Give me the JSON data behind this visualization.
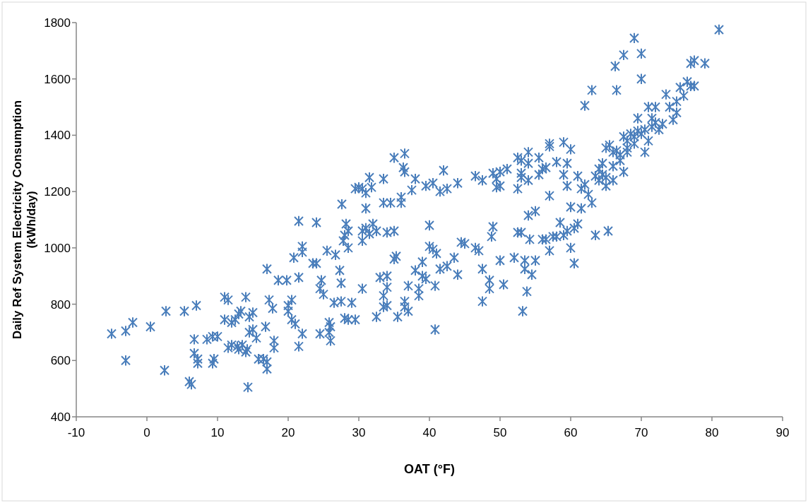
{
  "chart_data": {
    "type": "scatter",
    "xlabel": "OAT (°F)",
    "ylabel": "Daily Ref System Electricity Consumption\n(kWh/day)",
    "xlim": [
      -10,
      90
    ],
    "xticks": [
      -10,
      0,
      10,
      20,
      30,
      40,
      50,
      60,
      70,
      80,
      90
    ],
    "ylim": [
      400,
      1800
    ],
    "yticks": [
      400,
      600,
      800,
      1000,
      1200,
      1400,
      1600,
      1800
    ],
    "grid": false,
    "marker": "cross",
    "series": [
      {
        "color": "#4a7ebb",
        "x": [
          -5,
          -3,
          -2,
          0.5,
          -3,
          2.5,
          2.7,
          5.3,
          7,
          6,
          6.3,
          6.7,
          6.7,
          7.2,
          7.2,
          8.5,
          9.3,
          9.5,
          9.3,
          10,
          11,
          11.5,
          11,
          11.5,
          12,
          12,
          12.5,
          12.8,
          13,
          13.3,
          13,
          13.5,
          14,
          14,
          14.2,
          14.3,
          14.5,
          14.5,
          15,
          15,
          15.5,
          15.8,
          16.5,
          16.8,
          17,
          17,
          17,
          17.3,
          17.8,
          18,
          18,
          18.6,
          19.8,
          20,
          20,
          20.5,
          20.8,
          20.5,
          21,
          21.5,
          21.5,
          21.5,
          22,
          22,
          22,
          23.5,
          24,
          24,
          24.5,
          24.7,
          24.5,
          25,
          25.5,
          25.8,
          25.8,
          26,
          26,
          26.5,
          26.7,
          27.3,
          27.5,
          27.5,
          27.6,
          27.8,
          28,
          28,
          28.2,
          28.5,
          28.5,
          28.5,
          29,
          29.5,
          29.5,
          30,
          30.5,
          30.5,
          30.5,
          30.5,
          31,
          31,
          31,
          31.5,
          31.5,
          31.8,
          32,
          32.5,
          32.5,
          33,
          33.5,
          33.5,
          33.5,
          33.5,
          34,
          34,
          34,
          34,
          34.5,
          35,
          35,
          35,
          35.3,
          35.5,
          36,
          36,
          36.3,
          36.5,
          36.5,
          36.5,
          36.5,
          37,
          37,
          37.5,
          38,
          38,
          38.5,
          38.5,
          39,
          39,
          39.5,
          39.5,
          40,
          40,
          40.5,
          40.5,
          40.8,
          40.8,
          41,
          41.5,
          41.5,
          42,
          42.5,
          42.5,
          43.5,
          44,
          44,
          44.5,
          45,
          46.5,
          46.5,
          47,
          47.5,
          47.5,
          47.5,
          48.5,
          48.5,
          48.8,
          49,
          49,
          49.5,
          49.5,
          50,
          50,
          50,
          50.5,
          51,
          52,
          52.5,
          52.5,
          52.5,
          53,
          53,
          53,
          53,
          53.2,
          53.5,
          53.5,
          53.8,
          54,
          54,
          54,
          54,
          54.2,
          54.5,
          55,
          55,
          55.5,
          55.5,
          56,
          56,
          56.5,
          56.5,
          57,
          57,
          57,
          57,
          57.5,
          58,
          58,
          58.5,
          59,
          59,
          59,
          59.5,
          59.5,
          59.5,
          60,
          60,
          60,
          60.5,
          60.5,
          61,
          61,
          61.5,
          61.5,
          62,
          62,
          62.5,
          63,
          63,
          63.5,
          63.5,
          64,
          64,
          64.5,
          64.5,
          65,
          65,
          65,
          65.3,
          65.5,
          66,
          66,
          66,
          66.3,
          66.5,
          66.5,
          67,
          67,
          67.5,
          67.5,
          67.5,
          68,
          68,
          68,
          68.5,
          69,
          69,
          69,
          69.5,
          69.5,
          70,
          70,
          70,
          70.5,
          70.5,
          71,
          71,
          71.5,
          71.5,
          72,
          72,
          72.5,
          73,
          73.5,
          74,
          74.5,
          75,
          75,
          75.5,
          76,
          76.5,
          77,
          77,
          77.5,
          77.5,
          79,
          81
        ],
        "values": [
          695,
          705,
          735,
          720,
          600,
          565,
          775,
          775,
          795,
          525,
          515,
          675,
          625,
          605,
          590,
          675,
          685,
          605,
          590,
          685,
          825,
          815,
          745,
          645,
          735,
          655,
          745,
          650,
          765,
          775,
          640,
          655,
          825,
          630,
          640,
          505,
          700,
          755,
          770,
          710,
          680,
          605,
          605,
          720,
          925,
          570,
          595,
          815,
          785,
          645,
          670,
          885,
          885,
          795,
          775,
          815,
          965,
          745,
          730,
          895,
          650,
          1095,
          1005,
          985,
          695,
          945,
          945,
          1090,
          695,
          885,
          855,
          835,
          990,
          735,
          700,
          720,
          670,
          805,
          975,
          920,
          875,
          810,
          1155,
          1025,
          1045,
          750,
          1085,
          1060,
          1000,
          745,
          805,
          745,
          1210,
          1215,
          1210,
          1060,
          855,
          1025,
          1195,
          1140,
          1070,
          1050,
          1250,
          1215,
          1085,
          1060,
          755,
          895,
          1245,
          1160,
          830,
          790,
          900,
          1055,
          795,
          860,
          1160,
          1320,
          1060,
          960,
          970,
          755,
          1180,
          1160,
          1285,
          1335,
          1270,
          810,
          790,
          865,
          775,
          1205,
          920,
          1245,
          830,
          855,
          900,
          950,
          1220,
          890,
          1080,
          1005,
          995,
          1230,
          865,
          710,
          980,
          1200,
          925,
          1275,
          1210,
          935,
          965,
          1230,
          905,
          1020,
          1015,
          1255,
          1000,
          990,
          1240,
          925,
          810,
          885,
          855,
          1040,
          1075,
          1265,
          1215,
          1245,
          1270,
          1220,
          955,
          870,
          1280,
          965,
          1320,
          1210,
          1055,
          1310,
          1265,
          1250,
          1055,
          775,
          955,
          925,
          845,
          1115,
          1240,
          1300,
          1340,
          1030,
          905,
          1130,
          955,
          1320,
          1260,
          1280,
          1030,
          1285,
          1030,
          1370,
          1360,
          1185,
          990,
          1040,
          1040,
          1305,
          1090,
          1375,
          1260,
          1045,
          1060,
          1300,
          1220,
          1350,
          1145,
          1000,
          945,
          1070,
          1085,
          1255,
          1140,
          1210,
          1225,
          1505,
          1190,
          1560,
          1160,
          1255,
          1045,
          1280,
          1240,
          1300,
          1260,
          1355,
          1250,
          1220,
          1060,
          1365,
          1340,
          1290,
          1240,
          1645,
          1560,
          1345,
          1310,
          1330,
          1270,
          1395,
          1685,
          1380,
          1355,
          1340,
          1405,
          1745,
          1370,
          1395,
          1460,
          1415,
          1690,
          1600,
          1405,
          1420,
          1340,
          1380,
          1500,
          1430,
          1460,
          1500,
          1445,
          1420,
          1440,
          1545,
          1500,
          1455,
          1480,
          1520,
          1570,
          1540,
          1590,
          1575,
          1655,
          1665,
          1575,
          1655,
          1775
        ]
      }
    ]
  }
}
